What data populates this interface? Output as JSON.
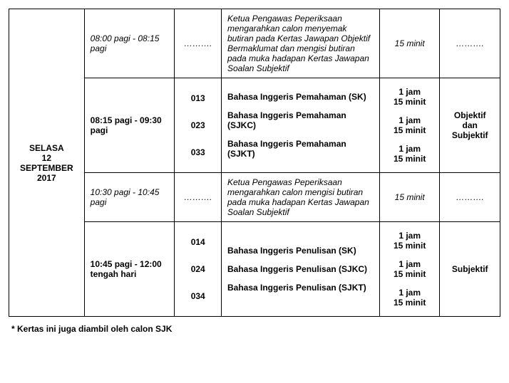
{
  "day": {
    "weekday": "SELASA",
    "date": "12 SEPTEMBER",
    "year": "2017"
  },
  "rows": [
    {
      "time": "08:00 pagi - 08:15 pagi",
      "timeItalic": true,
      "code": "……….",
      "codeItalic": true,
      "subject": "Ketua Pengawas Peperiksaan mengarahkan calon menyemak butiran pada Kertas Jawapan Objektif Bermaklumat dan mengisi butiran pada muka hadapan Kertas Jawapan Soalan Subjektif",
      "subjectItalic": true,
      "duration": "15 minit",
      "durationItalic": true,
      "type": "……….",
      "typeItalic": true
    },
    {
      "time": "08:15 pagi - 09:30 pagi",
      "codes": [
        "013",
        "023",
        "033"
      ],
      "subjects": [
        "Bahasa Inggeris Pemahaman (SK)",
        "Bahasa Inggeris Pemahaman (SJKC)",
        "Bahasa Inggeris Pemahaman (SJKT)"
      ],
      "durations": [
        "1 jam\n15 minit",
        "1 jam\n15 minit",
        "1 jam\n15 minit"
      ],
      "type": "Objektif dan Subjektif"
    },
    {
      "time": "10:30 pagi - 10:45 pagi",
      "timeItalic": true,
      "code": "……….",
      "codeItalic": true,
      "subject": "Ketua Pengawas Peperiksaan mengarahkan calon mengisi butiran pada muka hadapan Kertas Jawapan Soalan Subjektif",
      "subjectItalic": true,
      "duration": "15 minit",
      "durationItalic": true,
      "type": "……….",
      "typeItalic": true
    },
    {
      "time": "10:45 pagi - 12:00 tengah hari",
      "codes": [
        "014",
        "024",
        "034"
      ],
      "subjects": [
        "Bahasa Inggeris Penulisan (SK)",
        "Bahasa Inggeris Penulisan (SJKC)",
        "Bahasa Inggeris Penulisan (SJKT)"
      ],
      "durations": [
        "1 jam\n15 minit",
        "1 jam\n15 minit",
        "1 jam\n15 minit"
      ],
      "type": "Subjektif"
    }
  ],
  "footnote": "* Kertas ini juga diambil oleh calon SJK"
}
